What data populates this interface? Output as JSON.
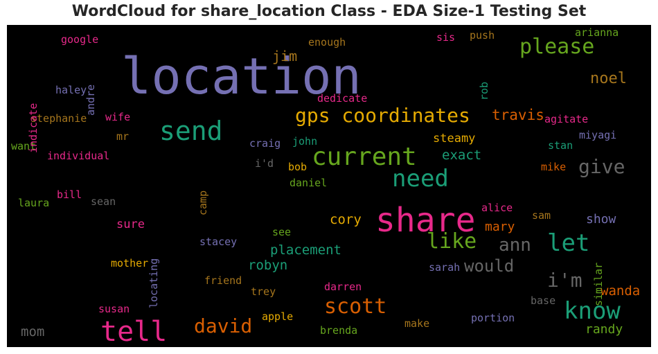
{
  "chart_data": {
    "type": "wordcloud",
    "title": "WordCloud for share_location Class - EDA Size-1 Testing Set",
    "background": "#000000",
    "colormap": "Dark2",
    "words": [
      {
        "text": "location",
        "color": "#7570b3"
      },
      {
        "text": "share",
        "color": "#e7298a"
      },
      {
        "text": "send",
        "color": "#1b9e77"
      },
      {
        "text": "gps coordinates",
        "color": "#e6ab02"
      },
      {
        "text": "current",
        "color": "#66a61e"
      },
      {
        "text": "need",
        "color": "#1b9e77"
      },
      {
        "text": "please",
        "color": "#66a61e"
      },
      {
        "text": "know",
        "color": "#1b9e77"
      },
      {
        "text": "tell",
        "color": "#e7298a"
      },
      {
        "text": "scott",
        "color": "#d95f02"
      },
      {
        "text": "give",
        "color": "#666666"
      },
      {
        "text": "let",
        "color": "#1b9e77"
      },
      {
        "text": "ann",
        "color": "#666666"
      },
      {
        "text": "david",
        "color": "#d95f02"
      },
      {
        "text": "like",
        "color": "#66a61e"
      },
      {
        "text": "i'm",
        "color": "#666666"
      },
      {
        "text": "would",
        "color": "#666666"
      },
      {
        "text": "noel",
        "color": "#a6761d"
      },
      {
        "text": "travis",
        "color": "#d95f02"
      },
      {
        "text": "exact",
        "color": "#1b9e77"
      },
      {
        "text": "jim",
        "color": "#a6761d"
      },
      {
        "text": "cory",
        "color": "#e6ab02"
      },
      {
        "text": "placement",
        "color": "#1b9e77"
      },
      {
        "text": "robyn",
        "color": "#1b9e77"
      },
      {
        "text": "mary",
        "color": "#d95f02"
      },
      {
        "text": "wanda",
        "color": "#d95f02"
      },
      {
        "text": "randy",
        "color": "#66a61e"
      },
      {
        "text": "show",
        "color": "#7570b3"
      },
      {
        "text": "steamy",
        "color": "#e6ab02"
      },
      {
        "text": "sure",
        "color": "#e7298a"
      },
      {
        "text": "mom",
        "color": "#666666"
      },
      {
        "text": "enough",
        "color": "#a6761d"
      },
      {
        "text": "google",
        "color": "#e7298a"
      },
      {
        "text": "stephanie",
        "color": "#a6761d"
      },
      {
        "text": "wife",
        "color": "#e7298a"
      },
      {
        "text": "mr",
        "color": "#a6761d"
      },
      {
        "text": "individual",
        "color": "#e7298a"
      },
      {
        "text": "want",
        "color": "#66a61e"
      },
      {
        "text": "haley",
        "color": "#7570b3"
      },
      {
        "text": "andre",
        "color": "#7570b3"
      },
      {
        "text": "indicate",
        "color": "#e7298a"
      },
      {
        "text": "rob",
        "color": "#1b9e77"
      },
      {
        "text": "sis",
        "color": "#e7298a"
      },
      {
        "text": "push",
        "color": "#a6761d"
      },
      {
        "text": "arianna",
        "color": "#66a61e"
      },
      {
        "text": "dedicate",
        "color": "#e7298a"
      },
      {
        "text": "agitate",
        "color": "#e7298a"
      },
      {
        "text": "miyagi",
        "color": "#7570b3"
      },
      {
        "text": "stan",
        "color": "#1b9e77"
      },
      {
        "text": "mike",
        "color": "#d95f02"
      },
      {
        "text": "craig",
        "color": "#7570b3"
      },
      {
        "text": "john",
        "color": "#1b9e77"
      },
      {
        "text": "i'd",
        "color": "#666666"
      },
      {
        "text": "bob",
        "color": "#e6ab02"
      },
      {
        "text": "daniel",
        "color": "#66a61e"
      },
      {
        "text": "camp",
        "color": "#a6761d"
      },
      {
        "text": "bill",
        "color": "#e7298a"
      },
      {
        "text": "sean",
        "color": "#666666"
      },
      {
        "text": "laura",
        "color": "#66a61e"
      },
      {
        "text": "locating",
        "color": "#7570b3"
      },
      {
        "text": "alice",
        "color": "#e7298a"
      },
      {
        "text": "sam",
        "color": "#a6761d"
      },
      {
        "text": "similar",
        "color": "#66a61e"
      },
      {
        "text": "see",
        "color": "#66a61e"
      },
      {
        "text": "stacey",
        "color": "#7570b3"
      },
      {
        "text": "sarah",
        "color": "#7570b3"
      },
      {
        "text": "mother",
        "color": "#e6ab02"
      },
      {
        "text": "friend",
        "color": "#a6761d"
      },
      {
        "text": "trey",
        "color": "#a6761d"
      },
      {
        "text": "darren",
        "color": "#e7298a"
      },
      {
        "text": "base",
        "color": "#666666"
      },
      {
        "text": "susan",
        "color": "#e7298a"
      },
      {
        "text": "apple",
        "color": "#e6ab02"
      },
      {
        "text": "portion",
        "color": "#7570b3"
      },
      {
        "text": "make",
        "color": "#a6761d"
      },
      {
        "text": "brenda",
        "color": "#66a61e"
      }
    ]
  }
}
